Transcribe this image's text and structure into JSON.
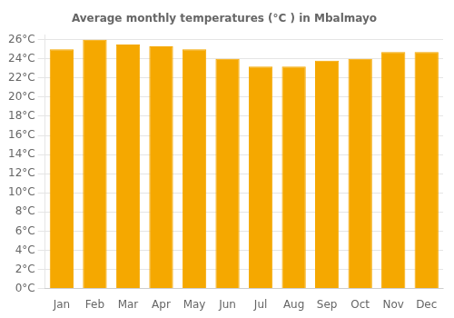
{
  "chart_data": {
    "type": "bar",
    "title": "Average monthly temperatures (°C ) in Mbalmayo",
    "categories": [
      "Jan",
      "Feb",
      "Mar",
      "Apr",
      "May",
      "Jun",
      "Jul",
      "Aug",
      "Sep",
      "Oct",
      "Nov",
      "Dec"
    ],
    "values": [
      25.0,
      26.0,
      25.5,
      25.3,
      25.0,
      24.0,
      23.2,
      23.2,
      23.8,
      24.0,
      24.7,
      24.7
    ],
    "color": "#F5A800",
    "ylim": [
      0,
      26.5
    ],
    "yticks": [
      {
        "value": 0,
        "label": "0°C"
      },
      {
        "value": 2,
        "label": "2°C"
      },
      {
        "value": 4,
        "label": "4°C"
      },
      {
        "value": 6,
        "label": "6°C"
      },
      {
        "value": 8,
        "label": "8°C"
      },
      {
        "value": 10,
        "label": "10°C"
      },
      {
        "value": 12,
        "label": "12°C"
      },
      {
        "value": 14,
        "label": "14°C"
      },
      {
        "value": 16,
        "label": "16°C"
      },
      {
        "value": 18,
        "label": "18°C"
      },
      {
        "value": 20,
        "label": "20°C"
      },
      {
        "value": 22,
        "label": "22°C"
      },
      {
        "value": 24,
        "label": "24°C"
      },
      {
        "value": 26,
        "label": "26°C"
      }
    ],
    "grid": true
  }
}
